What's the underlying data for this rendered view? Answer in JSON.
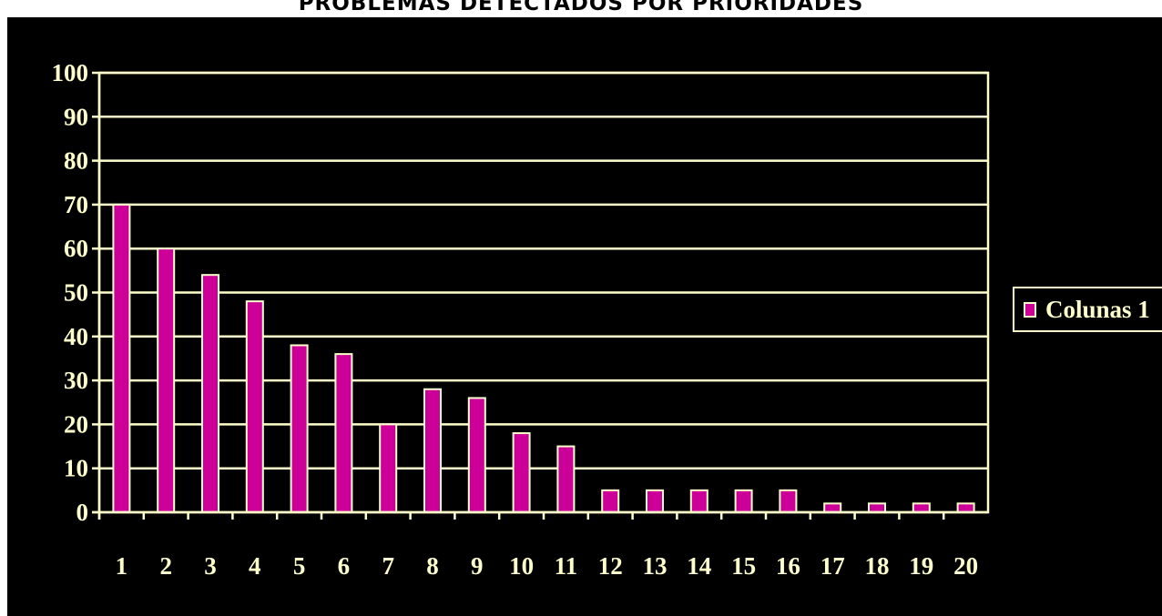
{
  "chart_data": {
    "type": "bar",
    "title": "PROBLEMAS DETECTADOS POR PRIORIDADES",
    "xlabel": "",
    "ylabel": "",
    "categories": [
      "1",
      "2",
      "3",
      "4",
      "5",
      "6",
      "7",
      "8",
      "9",
      "10",
      "11",
      "12",
      "13",
      "14",
      "15",
      "16",
      "17",
      "18",
      "19",
      "20"
    ],
    "series": [
      {
        "name": "Colunas 1",
        "values": [
          70,
          60,
          54,
          48,
          38,
          36,
          20,
          28,
          26,
          18,
          15,
          5,
          5,
          5,
          5,
          5,
          2,
          2,
          2,
          2
        ]
      }
    ],
    "ylim": [
      0,
      100
    ],
    "yticks": [
      "0",
      "10",
      "20",
      "30",
      "40",
      "50",
      "60",
      "70",
      "80",
      "90",
      "100"
    ],
    "grid": true,
    "legend_position": "right",
    "colors": {
      "background": "#000000",
      "bar": "#cc0099",
      "axis": "#ffffcc"
    }
  }
}
